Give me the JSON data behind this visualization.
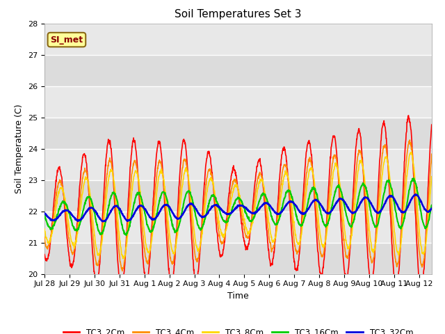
{
  "title": "Soil Temperatures Set 3",
  "xlabel": "Time",
  "ylabel": "Soil Temperature (C)",
  "ylim": [
    20.0,
    28.0
  ],
  "yticks": [
    20.0,
    21.0,
    22.0,
    23.0,
    24.0,
    25.0,
    26.0,
    27.0,
    28.0
  ],
  "xtick_labels": [
    "Jul 28",
    "Jul 29",
    "Jul 30",
    "Jul 31",
    "Aug 1",
    "Aug 2",
    "Aug 3",
    "Aug 4",
    "Aug 5",
    "Aug 6",
    "Aug 7",
    "Aug 8",
    "Aug 9",
    "Aug 10",
    "Aug 11",
    "Aug 12"
  ],
  "annotation_text": "SI_met",
  "annotation_color": "#8B0000",
  "annotation_bg": "#FFFF99",
  "bg_color": "#E0E0E0",
  "series": [
    {
      "label": "TC3_2Cm",
      "color": "#FF0000",
      "lw": 1.2
    },
    {
      "label": "TC3_4Cm",
      "color": "#FF8C00",
      "lw": 1.2
    },
    {
      "label": "TC3_8Cm",
      "color": "#FFD700",
      "lw": 1.2
    },
    {
      "label": "TC3_16Cm",
      "color": "#00CC00",
      "lw": 1.5
    },
    {
      "label": "TC3_32Cm",
      "color": "#0000DD",
      "lw": 1.8
    }
  ],
  "n_days": 15.5,
  "pts_per_day": 96
}
